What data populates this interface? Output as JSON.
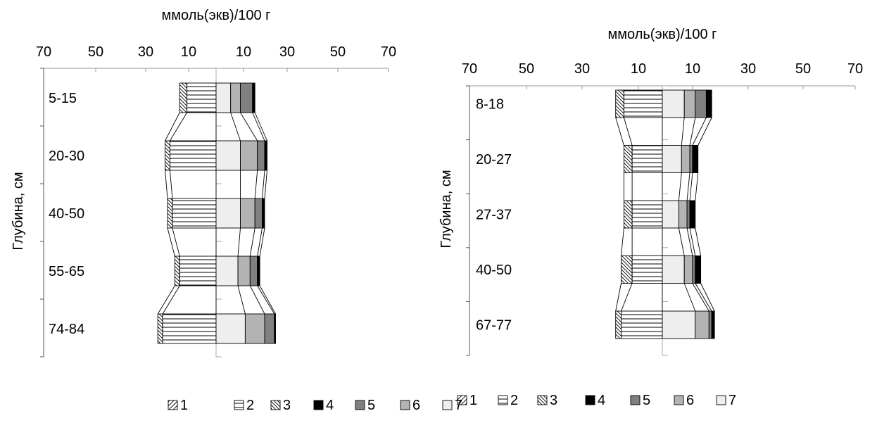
{
  "chart_data": [
    {
      "type": "bar",
      "orientation": "horizontal-stacked-two-sided",
      "xlabel": "ммоль(экв)/100 г",
      "ylabel": "Глубина, см",
      "x_tick_labels": [
        "70",
        "50",
        "30",
        "10",
        "10",
        "30",
        "50",
        "70"
      ],
      "xlim": [
        -70,
        70
      ],
      "categories": [
        "5-15",
        "20-30",
        "40-50",
        "55-65",
        "74-84"
      ],
      "series": [
        {
          "name": "1",
          "side": "left",
          "values": [
            0,
            0,
            0,
            0,
            0
          ]
        },
        {
          "name": "2",
          "side": "left",
          "values": [
            12,
            19,
            18,
            15,
            22
          ]
        },
        {
          "name": "3",
          "side": "left",
          "values": [
            3,
            2,
            2,
            2,
            2
          ]
        },
        {
          "name": "7",
          "side": "right",
          "values": [
            6,
            10,
            10,
            9,
            12
          ]
        },
        {
          "name": "6",
          "side": "right",
          "values": [
            4,
            7,
            6,
            5,
            8
          ]
        },
        {
          "name": "5",
          "side": "right",
          "values": [
            5,
            3,
            3,
            3,
            4
          ]
        },
        {
          "name": "4",
          "side": "right",
          "values": [
            1,
            1,
            1,
            1,
            0.5
          ]
        }
      ],
      "legend": [
        "1",
        "2",
        "3",
        "4",
        "5",
        "6",
        "7"
      ],
      "legend_position": "bottom"
    },
    {
      "type": "bar",
      "orientation": "horizontal-stacked-two-sided",
      "xlabel": "ммоль(экв)/100 г",
      "ylabel": "Глубина, см",
      "x_tick_labels": [
        "70",
        "50",
        "30",
        "10",
        "10",
        "30",
        "50",
        "70"
      ],
      "xlim": [
        -70,
        70
      ],
      "categories": [
        "8-18",
        "20-27",
        "27-37",
        "40-50",
        "67-77"
      ],
      "series": [
        {
          "name": "1",
          "side": "left",
          "values": [
            0,
            0,
            0,
            0,
            0
          ]
        },
        {
          "name": "2",
          "side": "left",
          "values": [
            14,
            11,
            11,
            11,
            15
          ]
        },
        {
          "name": "3",
          "side": "left",
          "values": [
            3,
            3,
            3,
            4,
            2
          ]
        },
        {
          "name": "7",
          "side": "right",
          "values": [
            8,
            7,
            6,
            8,
            12
          ]
        },
        {
          "name": "6",
          "side": "right",
          "values": [
            4,
            3,
            3,
            3,
            5
          ]
        },
        {
          "name": "5",
          "side": "right",
          "values": [
            4,
            1,
            1,
            1,
            1
          ]
        },
        {
          "name": "4",
          "side": "right",
          "values": [
            2,
            2,
            2,
            2,
            1
          ]
        }
      ],
      "legend": [
        "1",
        "2",
        "3",
        "4",
        "5",
        "6",
        "7"
      ],
      "legend_position": "bottom"
    }
  ]
}
